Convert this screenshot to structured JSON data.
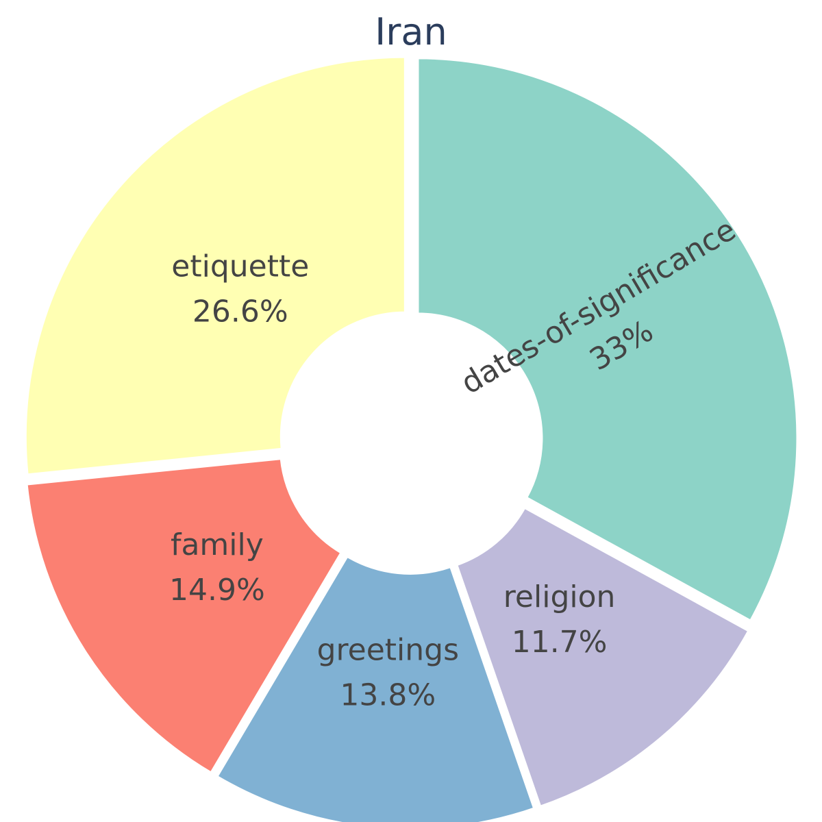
{
  "chart_data": {
    "type": "pie",
    "style": "donut",
    "title": "Iran",
    "start": "top",
    "direction": "clockwise",
    "slices": [
      {
        "name": "dates-of-significance",
        "value": 33.0,
        "value_label": "33%",
        "color": "#8dd3c7"
      },
      {
        "name": "religion",
        "value": 11.7,
        "value_label": "11.7%",
        "color": "#bebada"
      },
      {
        "name": "greetings",
        "value": 13.8,
        "value_label": "13.8%",
        "color": "#80b1d3"
      },
      {
        "name": "family",
        "value": 14.9,
        "value_label": "14.9%",
        "color": "#fb8072"
      },
      {
        "name": "etiquette",
        "value": 26.6,
        "value_label": "26.6%",
        "color": "#ffffb3"
      }
    ]
  }
}
